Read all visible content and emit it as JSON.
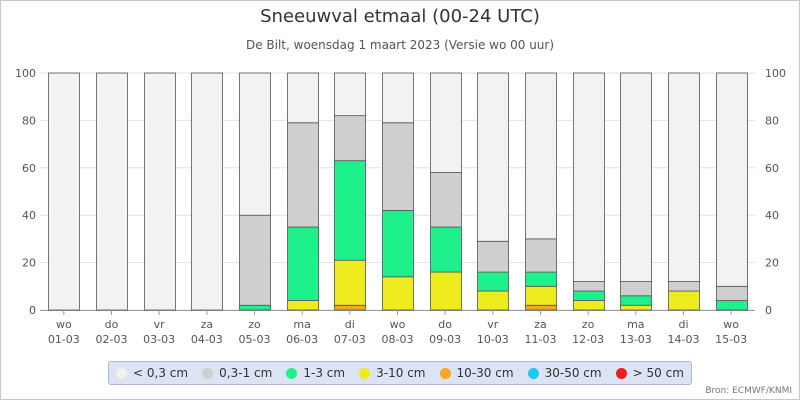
{
  "title": "Sneeuwval etmaal (00-24 UTC)",
  "subtitle": "De Bilt, woensdag 1 maart 2023 (Versie wo 00 uur)",
  "source": "Bron: ECMWF/KNMI",
  "legend": [
    {
      "label": "< 0,3 cm",
      "color": "#f2f2f2"
    },
    {
      "label": "0,3-1 cm",
      "color": "#cfcfcf"
    },
    {
      "label": "1-3 cm",
      "color": "#1ef08c"
    },
    {
      "label": "3-10 cm",
      "color": "#eeeb1f"
    },
    {
      "label": "10-30 cm",
      "color": "#f5a623"
    },
    {
      "label": "30-50 cm",
      "color": "#1ec8f5"
    },
    {
      "label": "> 50 cm",
      "color": "#ee1c1c"
    }
  ],
  "chart_data": {
    "type": "bar",
    "stacked": true,
    "categories": [
      [
        "wo",
        "01-03"
      ],
      [
        "do",
        "02-03"
      ],
      [
        "vr",
        "03-03"
      ],
      [
        "za",
        "04-03"
      ],
      [
        "zo",
        "05-03"
      ],
      [
        "ma",
        "06-03"
      ],
      [
        "di",
        "07-03"
      ],
      [
        "wo",
        "08-03"
      ],
      [
        "do",
        "09-03"
      ],
      [
        "vr",
        "10-03"
      ],
      [
        "za",
        "11-03"
      ],
      [
        "zo",
        "12-03"
      ],
      [
        "ma",
        "13-03"
      ],
      [
        "di",
        "14-03"
      ],
      [
        "wo",
        "15-03"
      ]
    ],
    "series": [
      {
        "name": "> 50 cm",
        "values": [
          0,
          0,
          0,
          0,
          0,
          0,
          0,
          0,
          0,
          0,
          0,
          0,
          0,
          0,
          0
        ]
      },
      {
        "name": "30-50 cm",
        "values": [
          0,
          0,
          0,
          0,
          0,
          0,
          0,
          0,
          0,
          0,
          0,
          0,
          0,
          0,
          0
        ]
      },
      {
        "name": "10-30 cm",
        "values": [
          0,
          0,
          0,
          0,
          0,
          0,
          2,
          0,
          0,
          0,
          2,
          0,
          0,
          0,
          0
        ]
      },
      {
        "name": "3-10 cm",
        "values": [
          0,
          0,
          0,
          0,
          0,
          4,
          19,
          14,
          16,
          8,
          8,
          4,
          2,
          8,
          0
        ]
      },
      {
        "name": "1-3 cm",
        "values": [
          0,
          0,
          0,
          0,
          2,
          31,
          42,
          28,
          19,
          8,
          6,
          4,
          4,
          0,
          4
        ]
      },
      {
        "name": "0,3-1 cm",
        "values": [
          0,
          0,
          0,
          0,
          38,
          44,
          19,
          37,
          23,
          13,
          14,
          4,
          6,
          4,
          6
        ]
      },
      {
        "name": "< 0,3 cm",
        "values": [
          100,
          100,
          100,
          100,
          60,
          21,
          18,
          21,
          42,
          71,
          70,
          88,
          88,
          88,
          90
        ]
      }
    ],
    "ylim": [
      0,
      100
    ],
    "yticks": [
      0,
      20,
      40,
      60,
      80,
      100
    ],
    "grid": true,
    "legend_position": "bottom"
  }
}
